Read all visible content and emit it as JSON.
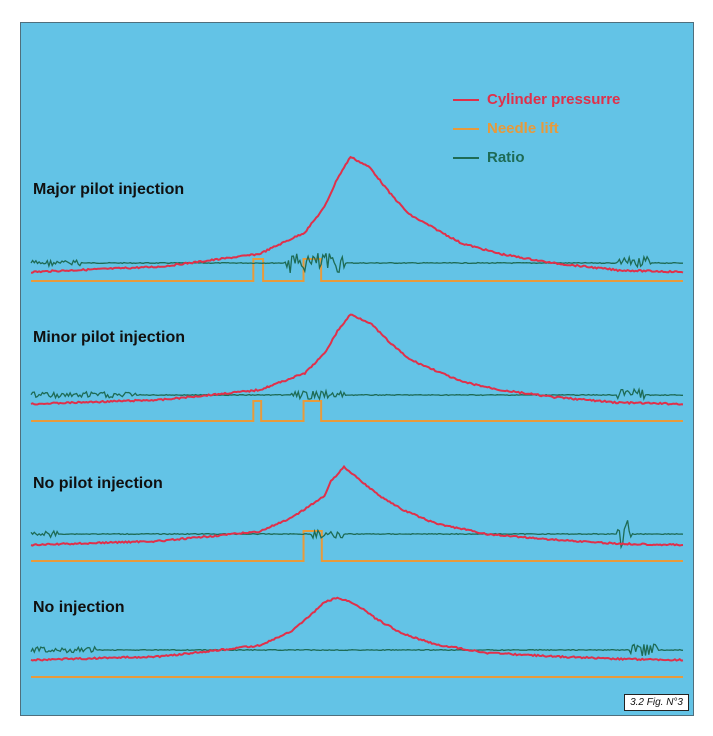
{
  "figure_label": "3.2 Fig. N°3",
  "colors": {
    "background": "#63c3e6",
    "cylinder_pressure": "#e0304a",
    "needle_lift": "#e89a3a",
    "ratio": "#1e6b55"
  },
  "legend": [
    {
      "label": "Cylinder pressurre",
      "color": "#e0304a"
    },
    {
      "label": "Needle lift",
      "color": "#e89a3a"
    },
    {
      "label": "Ratio",
      "color": "#1e6b55"
    }
  ],
  "chart_data": {
    "type": "line",
    "title": "",
    "xlabel": "",
    "ylabel": "",
    "grid": false,
    "legend_position": "top-right",
    "x_range": [
      0,
      100
    ],
    "panels": [
      {
        "title": "Major pilot injection",
        "cylinder_pressure": {
          "x": [
            0,
            20,
            35,
            42,
            45,
            47,
            49,
            52,
            55,
            58,
            62,
            66,
            72,
            80,
            90,
            100
          ],
          "y": [
            0,
            3,
            10,
            22,
            36,
            52,
            64,
            58,
            44,
            32,
            24,
            16,
            10,
            5,
            1,
            0
          ]
        },
        "needle_lift": {
          "pulses": [
            {
              "start": 34.1,
              "end": 35.6,
              "height": 22
            },
            {
              "start": 41.8,
              "end": 44.5,
              "height": 22
            }
          ]
        },
        "ratio": {
          "level": 0,
          "noise": [
            {
              "start": 0,
              "end": 8,
              "amplitude": 3
            },
            {
              "start": 39,
              "end": 48,
              "amplitude": 10
            },
            {
              "start": 90,
              "end": 95,
              "amplitude": 6
            }
          ]
        }
      },
      {
        "title": "Minor pilot injection",
        "cylinder_pressure": {
          "x": [
            0,
            20,
            35,
            42,
            45,
            47,
            49,
            52,
            55,
            58,
            62,
            66,
            72,
            80,
            90,
            100
          ],
          "y": [
            0,
            3,
            10,
            22,
            36,
            52,
            64,
            58,
            44,
            32,
            24,
            16,
            10,
            5,
            1,
            0
          ]
        },
        "needle_lift": {
          "pulses": [
            {
              "start": 34.1,
              "end": 35.3,
              "height": 20
            },
            {
              "start": 41.8,
              "end": 44.5,
              "height": 20
            }
          ]
        },
        "ratio": {
          "level": 0,
          "noise": [
            {
              "start": 0,
              "end": 16,
              "amplitude": 3
            },
            {
              "start": 40,
              "end": 48,
              "amplitude": 4
            },
            {
              "start": 90,
              "end": 94,
              "amplitude": 6
            }
          ]
        }
      },
      {
        "title": "No pilot injection",
        "cylinder_pressure": {
          "x": [
            0,
            20,
            35,
            40,
            43,
            45,
            46,
            47,
            48,
            50,
            53,
            57,
            62,
            70,
            80,
            90,
            100
          ],
          "y": [
            0,
            3,
            10,
            20,
            30,
            36,
            48,
            52,
            58,
            50,
            38,
            26,
            16,
            8,
            4,
            1,
            0
          ]
        },
        "needle_lift": {
          "pulses": [
            {
              "start": 41.8,
              "end": 44.6,
              "height": 30
            }
          ]
        },
        "ratio": {
          "level": 0,
          "noise": [
            {
              "start": 0,
              "end": 4,
              "amplitude": 3
            },
            {
              "start": 43,
              "end": 48,
              "amplitude": 4
            },
            {
              "start": 90,
              "end": 92,
              "amplitude": 14
            }
          ]
        }
      },
      {
        "title": "No injection",
        "cylinder_pressure": {
          "x": [
            0,
            20,
            35,
            40,
            43,
            45,
            47,
            50,
            53,
            57,
            62,
            70,
            80,
            90,
            100
          ],
          "y": [
            0,
            3,
            12,
            24,
            38,
            48,
            52,
            46,
            34,
            22,
            13,
            6,
            3,
            1,
            0
          ]
        },
        "needle_lift": {
          "pulses": []
        },
        "ratio": {
          "level": 0,
          "noise": [
            {
              "start": 0,
              "end": 10,
              "amplitude": 3
            },
            {
              "start": 92,
              "end": 96,
              "amplitude": 6
            }
          ]
        }
      }
    ]
  }
}
